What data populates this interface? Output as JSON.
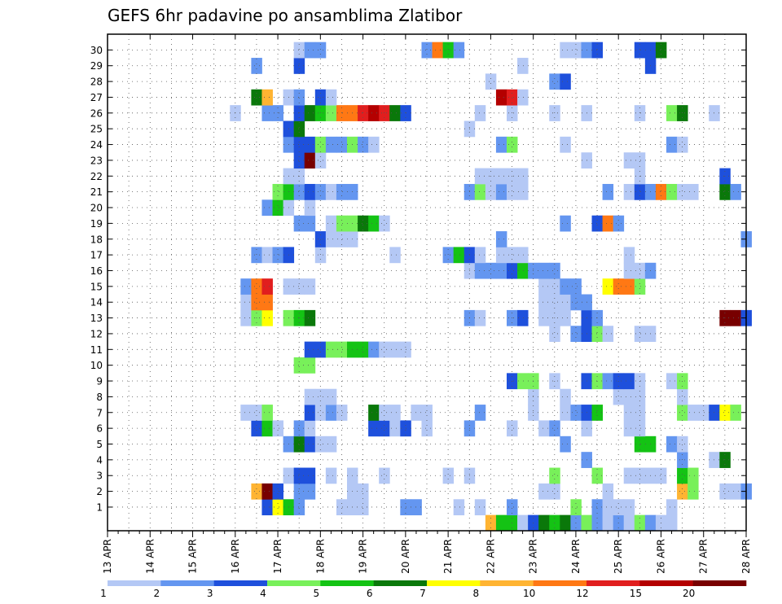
{
  "chart_data": {
    "type": "heatmap",
    "title": "GEFS 6hr padavine po ansamblima Zlatibor",
    "xlabel": "",
    "ylabel": "",
    "x_tick_labels": [
      "13 APR",
      "14 APR",
      "15 APR",
      "16 APR",
      "17 APR",
      "18 APR",
      "19 APR",
      "20 APR",
      "21 APR",
      "22 APR",
      "23 APR",
      "24 APR",
      "25 APR",
      "26 APR",
      "27 APR",
      "28 APR"
    ],
    "y_tick_labels": [
      "1",
      "2",
      "3",
      "4",
      "5",
      "6",
      "7",
      "8",
      "9",
      "10",
      "11",
      "12",
      "13",
      "14",
      "15",
      "16",
      "17",
      "18",
      "19",
      "20",
      "21",
      "22",
      "23",
      "24",
      "25",
      "26",
      "27",
      "28",
      "29",
      "30"
    ],
    "time_steps_per_day": 4,
    "members": 30,
    "grid": true,
    "colorbar": {
      "ticks": [
        "1",
        "2",
        "3",
        "4",
        "5",
        "6",
        "7",
        "8",
        "10",
        "12",
        "15",
        "20"
      ],
      "colors": [
        "#b4c8f5",
        "#6496f0",
        "#1e50dc",
        "#78f05a",
        "#14c314",
        "#0a780a",
        "#ffff00",
        "#ffb432",
        "#ff7814",
        "#e11e1e",
        "#b40000",
        "#780000"
      ]
    },
    "cells": {
      "1": [
        [
          15,
          3
        ],
        [
          16,
          7
        ],
        [
          17,
          5
        ],
        [
          18,
          2
        ],
        [
          22,
          1
        ],
        [
          23,
          1
        ],
        [
          24,
          1
        ],
        [
          28,
          2
        ],
        [
          29,
          2
        ],
        [
          33,
          1
        ],
        [
          35,
          1
        ],
        [
          38,
          2
        ],
        [
          44,
          4
        ],
        [
          46,
          2
        ],
        [
          47,
          1
        ],
        [
          48,
          1
        ],
        [
          49,
          1
        ],
        [
          53,
          1
        ]
      ],
      "2": [
        [
          14,
          8
        ],
        [
          15,
          12
        ],
        [
          16,
          3
        ],
        [
          18,
          2
        ],
        [
          19,
          2
        ],
        [
          23,
          1
        ],
        [
          24,
          1
        ],
        [
          41,
          1
        ],
        [
          42,
          1
        ],
        [
          47,
          1
        ],
        [
          54,
          8
        ],
        [
          55,
          4
        ],
        [
          58,
          1
        ],
        [
          59,
          1
        ],
        [
          60,
          2
        ]
      ],
      "3": [
        [
          17,
          1
        ],
        [
          18,
          3
        ],
        [
          19,
          3
        ],
        [
          21,
          1
        ],
        [
          23,
          1
        ],
        [
          26,
          1
        ],
        [
          32,
          1
        ],
        [
          34,
          1
        ],
        [
          42,
          4
        ],
        [
          46,
          4
        ],
        [
          49,
          1
        ],
        [
          50,
          1
        ],
        [
          51,
          1
        ],
        [
          52,
          1
        ],
        [
          54,
          5
        ],
        [
          55,
          4
        ]
      ],
      "4": [
        [
          45,
          2
        ],
        [
          54,
          2
        ],
        [
          57,
          1
        ],
        [
          58,
          6
        ]
      ],
      "5": [
        [
          17,
          2
        ],
        [
          18,
          6
        ],
        [
          19,
          3
        ],
        [
          20,
          1
        ],
        [
          21,
          1
        ],
        [
          43,
          2
        ],
        [
          50,
          5
        ],
        [
          51,
          5
        ],
        [
          53,
          2
        ],
        [
          54,
          1
        ]
      ],
      "6": [
        [
          14,
          3
        ],
        [
          15,
          5
        ],
        [
          16,
          1
        ],
        [
          18,
          2
        ],
        [
          19,
          1
        ],
        [
          25,
          3
        ],
        [
          26,
          3
        ],
        [
          27,
          1
        ],
        [
          28,
          3
        ],
        [
          30,
          1
        ],
        [
          34,
          2
        ],
        [
          38,
          1
        ],
        [
          41,
          1
        ],
        [
          42,
          2
        ],
        [
          45,
          1
        ],
        [
          49,
          1
        ],
        [
          50,
          1
        ]
      ],
      "7": [
        [
          13,
          1
        ],
        [
          14,
          1
        ],
        [
          15,
          4
        ],
        [
          19,
          3
        ],
        [
          20,
          1
        ],
        [
          21,
          2
        ],
        [
          22,
          1
        ],
        [
          25,
          6
        ],
        [
          26,
          1
        ],
        [
          27,
          1
        ],
        [
          29,
          1
        ],
        [
          30,
          1
        ],
        [
          35,
          2
        ],
        [
          40,
          1
        ],
        [
          43,
          1
        ],
        [
          44,
          2
        ],
        [
          45,
          3
        ],
        [
          46,
          5
        ],
        [
          49,
          1
        ],
        [
          50,
          1
        ],
        [
          54,
          4
        ],
        [
          55,
          1
        ],
        [
          56,
          1
        ],
        [
          57,
          3
        ],
        [
          58,
          7
        ],
        [
          59,
          4
        ]
      ],
      "8": [
        [
          19,
          1
        ],
        [
          20,
          1
        ],
        [
          21,
          1
        ],
        [
          40,
          1
        ],
        [
          43,
          1
        ],
        [
          48,
          1
        ],
        [
          49,
          1
        ],
        [
          50,
          1
        ],
        [
          54,
          1
        ]
      ],
      "9": [
        [
          38,
          3
        ],
        [
          39,
          4
        ],
        [
          40,
          4
        ],
        [
          42,
          1
        ],
        [
          45,
          3
        ],
        [
          46,
          4
        ],
        [
          47,
          2
        ],
        [
          48,
          3
        ],
        [
          49,
          3
        ],
        [
          50,
          1
        ],
        [
          53,
          1
        ],
        [
          54,
          4
        ]
      ],
      "10": [
        [
          18,
          4
        ],
        [
          19,
          4
        ]
      ],
      "11": [
        [
          19,
          3
        ],
        [
          20,
          3
        ],
        [
          21,
          4
        ],
        [
          22,
          4
        ],
        [
          23,
          5
        ],
        [
          24,
          5
        ],
        [
          25,
          2
        ],
        [
          26,
          1
        ],
        [
          27,
          1
        ],
        [
          28,
          1
        ]
      ],
      "12": [
        [
          42,
          1
        ],
        [
          44,
          2
        ],
        [
          45,
          3
        ],
        [
          46,
          4
        ],
        [
          47,
          1
        ],
        [
          50,
          1
        ],
        [
          51,
          1
        ]
      ],
      "13": [
        [
          13,
          1
        ],
        [
          14,
          4
        ],
        [
          15,
          7
        ],
        [
          17,
          4
        ],
        [
          18,
          5
        ],
        [
          19,
          6
        ],
        [
          34,
          2
        ],
        [
          35,
          1
        ],
        [
          38,
          2
        ],
        [
          39,
          3
        ],
        [
          41,
          1
        ],
        [
          42,
          1
        ],
        [
          43,
          1
        ],
        [
          45,
          3
        ],
        [
          46,
          2
        ],
        [
          58,
          12
        ],
        [
          59,
          12
        ],
        [
          60,
          3
        ]
      ],
      "14": [
        [
          13,
          1
        ],
        [
          14,
          9
        ],
        [
          15,
          9
        ],
        [
          41,
          1
        ],
        [
          42,
          1
        ],
        [
          43,
          1
        ],
        [
          44,
          2
        ],
        [
          45,
          2
        ]
      ],
      "15": [
        [
          13,
          2
        ],
        [
          14,
          9
        ],
        [
          15,
          10
        ],
        [
          17,
          1
        ],
        [
          18,
          1
        ],
        [
          19,
          1
        ],
        [
          41,
          1
        ],
        [
          42,
          1
        ],
        [
          43,
          2
        ],
        [
          44,
          2
        ],
        [
          47,
          7
        ],
        [
          48,
          9
        ],
        [
          49,
          9
        ],
        [
          50,
          4
        ]
      ],
      "16": [
        [
          34,
          1
        ],
        [
          35,
          2
        ],
        [
          36,
          2
        ],
        [
          37,
          2
        ],
        [
          38,
          3
        ],
        [
          39,
          5
        ],
        [
          40,
          2
        ],
        [
          41,
          2
        ],
        [
          42,
          2
        ],
        [
          49,
          1
        ],
        [
          50,
          1
        ],
        [
          51,
          2
        ]
      ],
      "17": [
        [
          14,
          2
        ],
        [
          15,
          1
        ],
        [
          16,
          2
        ],
        [
          17,
          3
        ],
        [
          20,
          1
        ],
        [
          27,
          1
        ],
        [
          32,
          2
        ],
        [
          33,
          5
        ],
        [
          34,
          3
        ],
        [
          35,
          1
        ],
        [
          37,
          1
        ],
        [
          38,
          1
        ],
        [
          39,
          1
        ],
        [
          49,
          1
        ]
      ],
      "18": [
        [
          20,
          3
        ],
        [
          21,
          1
        ],
        [
          22,
          1
        ],
        [
          23,
          1
        ],
        [
          37,
          2
        ],
        [
          60,
          2
        ]
      ],
      "19": [
        [
          18,
          2
        ],
        [
          19,
          2
        ],
        [
          21,
          1
        ],
        [
          22,
          4
        ],
        [
          23,
          4
        ],
        [
          24,
          6
        ],
        [
          25,
          5
        ],
        [
          26,
          1
        ],
        [
          43,
          2
        ],
        [
          46,
          3
        ],
        [
          47,
          9
        ],
        [
          48,
          2
        ]
      ],
      "20": [
        [
          15,
          2
        ],
        [
          16,
          5
        ],
        [
          17,
          1
        ],
        [
          19,
          1
        ]
      ],
      "21": [
        [
          16,
          4
        ],
        [
          17,
          5
        ],
        [
          18,
          2
        ],
        [
          19,
          3
        ],
        [
          20,
          2
        ],
        [
          21,
          1
        ],
        [
          22,
          2
        ],
        [
          23,
          2
        ],
        [
          34,
          2
        ],
        [
          35,
          4
        ],
        [
          36,
          1
        ],
        [
          37,
          2
        ],
        [
          38,
          1
        ],
        [
          39,
          1
        ],
        [
          47,
          2
        ],
        [
          49,
          1
        ],
        [
          50,
          3
        ],
        [
          51,
          2
        ],
        [
          52,
          9
        ],
        [
          53,
          4
        ],
        [
          54,
          1
        ],
        [
          55,
          1
        ],
        [
          58,
          6
        ],
        [
          59,
          2
        ]
      ],
      "22": [
        [
          17,
          1
        ],
        [
          18,
          1
        ],
        [
          35,
          1
        ],
        [
          36,
          1
        ],
        [
          37,
          1
        ],
        [
          38,
          1
        ],
        [
          39,
          1
        ],
        [
          50,
          1
        ],
        [
          58,
          3
        ]
      ],
      "23": [
        [
          18,
          3
        ],
        [
          19,
          12
        ],
        [
          20,
          1
        ],
        [
          45,
          1
        ],
        [
          49,
          1
        ],
        [
          50,
          1
        ]
      ],
      "24": [
        [
          17,
          2
        ],
        [
          18,
          3
        ],
        [
          19,
          3
        ],
        [
          20,
          4
        ],
        [
          21,
          2
        ],
        [
          22,
          2
        ],
        [
          23,
          4
        ],
        [
          24,
          2
        ],
        [
          25,
          1
        ],
        [
          37,
          2
        ],
        [
          38,
          4
        ],
        [
          43,
          1
        ],
        [
          53,
          2
        ],
        [
          54,
          1
        ]
      ],
      "25": [
        [
          17,
          3
        ],
        [
          18,
          6
        ],
        [
          34,
          1
        ]
      ],
      "26": [
        [
          12,
          1
        ],
        [
          15,
          2
        ],
        [
          16,
          2
        ],
        [
          18,
          3
        ],
        [
          19,
          6
        ],
        [
          20,
          5
        ],
        [
          21,
          4
        ],
        [
          22,
          9
        ],
        [
          23,
          9
        ],
        [
          24,
          10
        ],
        [
          25,
          11
        ],
        [
          26,
          10
        ],
        [
          27,
          6
        ],
        [
          28,
          3
        ],
        [
          35,
          1
        ],
        [
          38,
          1
        ],
        [
          42,
          1
        ],
        [
          45,
          1
        ],
        [
          50,
          1
        ],
        [
          53,
          4
        ],
        [
          54,
          6
        ],
        [
          57,
          1
        ]
      ],
      "27": [
        [
          14,
          6
        ],
        [
          15,
          8
        ],
        [
          17,
          1
        ],
        [
          18,
          2
        ],
        [
          20,
          3
        ],
        [
          21,
          1
        ],
        [
          37,
          11
        ],
        [
          38,
          10
        ],
        [
          39,
          1
        ]
      ],
      "28": [
        [
          36,
          1
        ],
        [
          42,
          2
        ],
        [
          43,
          3
        ]
      ],
      "29": [
        [
          14,
          2
        ],
        [
          18,
          3
        ],
        [
          39,
          1
        ],
        [
          51,
          3
        ]
      ],
      "30": [
        [
          18,
          1
        ],
        [
          19,
          2
        ],
        [
          20,
          2
        ],
        [
          30,
          2
        ],
        [
          31,
          9
        ],
        [
          32,
          5
        ],
        [
          33,
          2
        ],
        [
          43,
          1
        ],
        [
          44,
          1
        ],
        [
          45,
          2
        ],
        [
          46,
          3
        ],
        [
          50,
          3
        ],
        [
          51,
          3
        ],
        [
          52,
          6
        ]
      ],
      "0": [
        [
          36,
          8
        ],
        [
          37,
          5
        ],
        [
          38,
          5
        ],
        [
          39,
          1
        ],
        [
          40,
          3
        ],
        [
          41,
          6
        ],
        [
          42,
          5
        ],
        [
          43,
          6
        ],
        [
          44,
          2
        ],
        [
          45,
          4
        ],
        [
          46,
          2
        ],
        [
          47,
          1
        ],
        [
          48,
          2
        ],
        [
          49,
          1
        ],
        [
          50,
          4
        ],
        [
          51,
          2
        ],
        [
          52,
          1
        ],
        [
          53,
          1
        ]
      ]
    }
  }
}
